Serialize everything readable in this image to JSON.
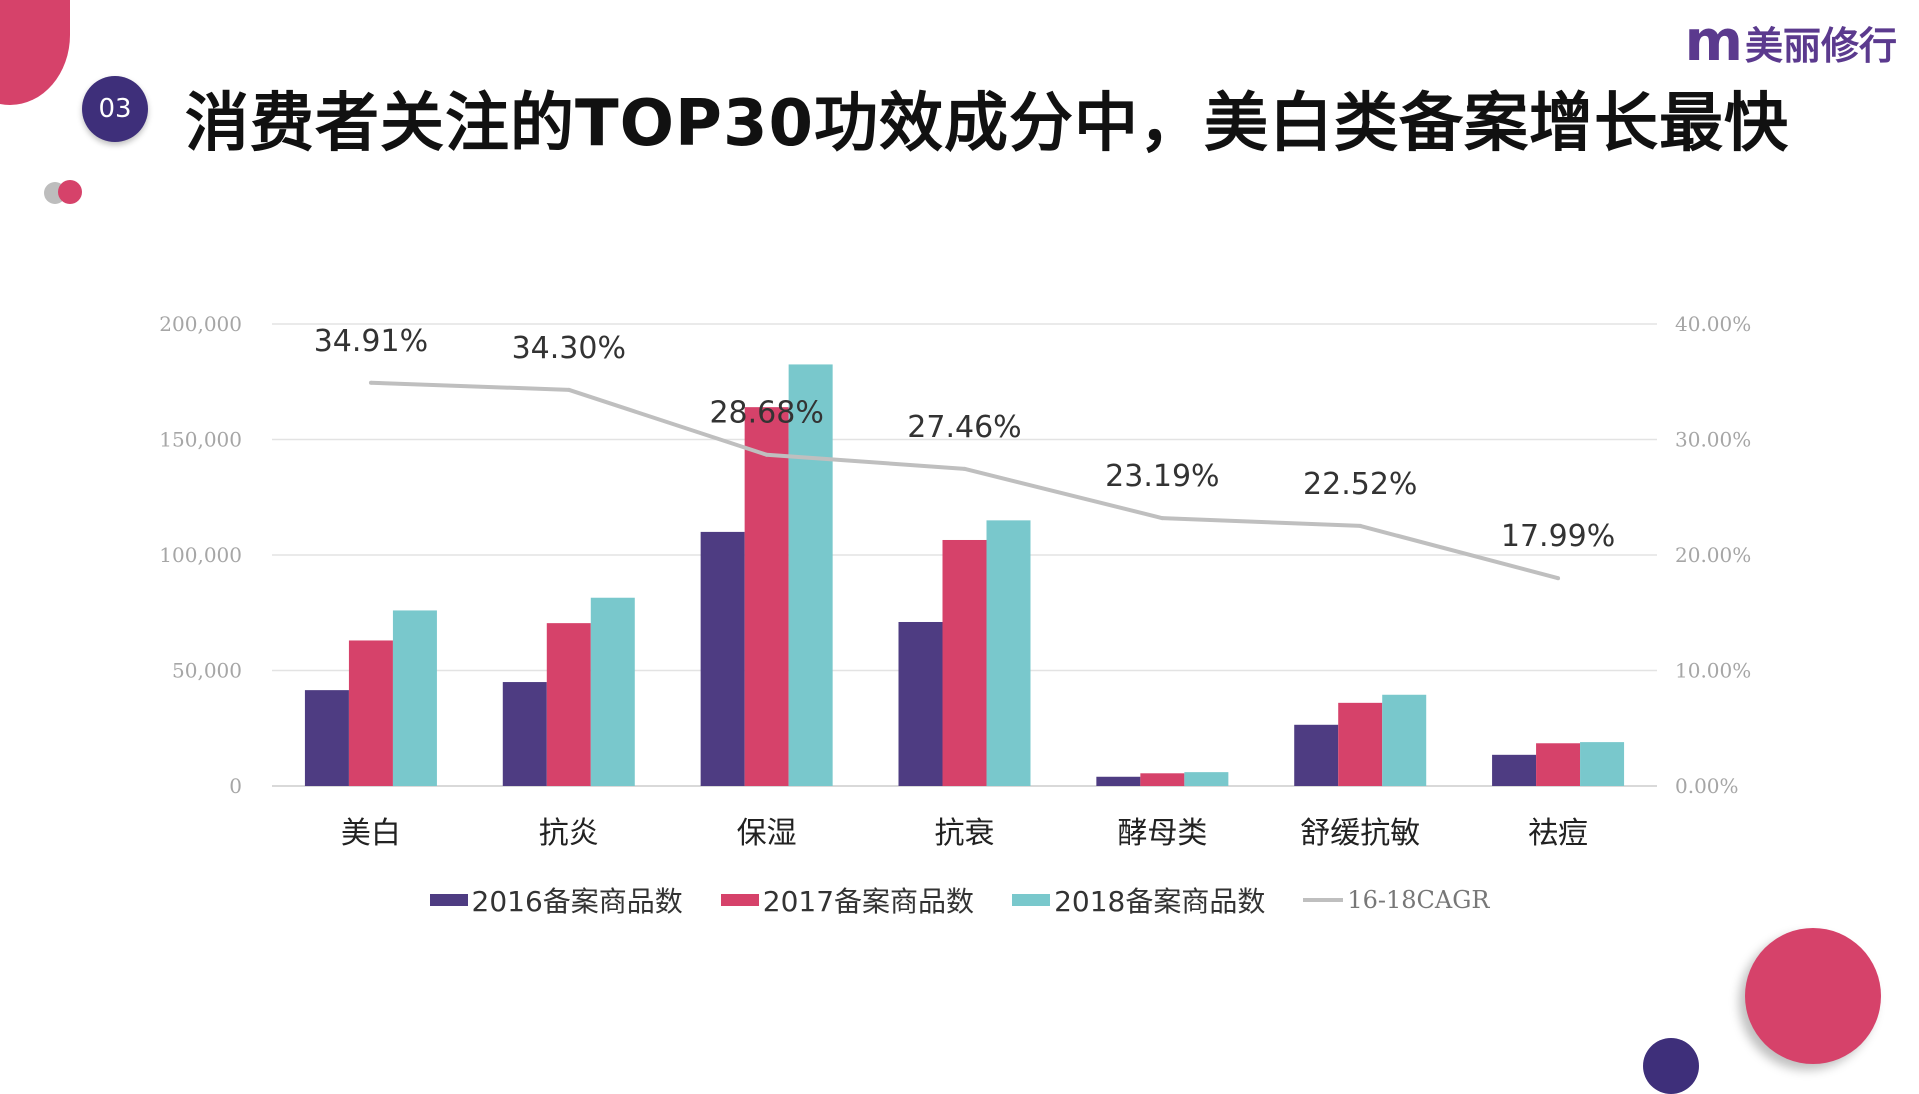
{
  "header": {
    "slide_number": "03",
    "title": "消费者关注的TOP30功效成分中，美白类备案增长最快"
  },
  "brand": {
    "mark": "m",
    "name": "美丽修行"
  },
  "colors": {
    "s2016": "#4e3c82",
    "s2017": "#d6426a",
    "s2018": "#79c8cc",
    "cagr": "#bfbfbf",
    "accent_pink": "#d6426a",
    "accent_purple": "#3e2f7a"
  },
  "chart_data": {
    "type": "bar",
    "categories": [
      "美白",
      "抗炎",
      "保湿",
      "抗衰",
      "酵母类",
      "舒缓抗敏",
      "祛痘"
    ],
    "series": [
      {
        "name": "2016备案商品数",
        "values": [
          41500,
          45000,
          110000,
          71000,
          4000,
          26500,
          13500
        ]
      },
      {
        "name": "2017备案商品数",
        "values": [
          63000,
          70500,
          164000,
          106500,
          5500,
          36000,
          18500
        ]
      },
      {
        "name": "2018备案商品数",
        "values": [
          76000,
          81500,
          182500,
          115000,
          6000,
          39500,
          19000
        ]
      }
    ],
    "line_series": {
      "name": "16-18CAGR",
      "values": [
        34.91,
        34.3,
        28.68,
        27.46,
        23.19,
        22.52,
        17.99
      ],
      "labels": [
        "34.91%",
        "34.30%",
        "28.68%",
        "27.46%",
        "23.19%",
        "22.52%",
        "17.99%"
      ]
    },
    "ylim": [
      0,
      200000
    ],
    "y_ticks": [
      "0",
      "50,000",
      "100,000",
      "150,000",
      "200,000"
    ],
    "y2lim": [
      0,
      40
    ],
    "y2_ticks": [
      "0.00%",
      "10.00%",
      "20.00%",
      "30.00%",
      "40.00%"
    ],
    "grid": true,
    "legend_position": "bottom"
  }
}
